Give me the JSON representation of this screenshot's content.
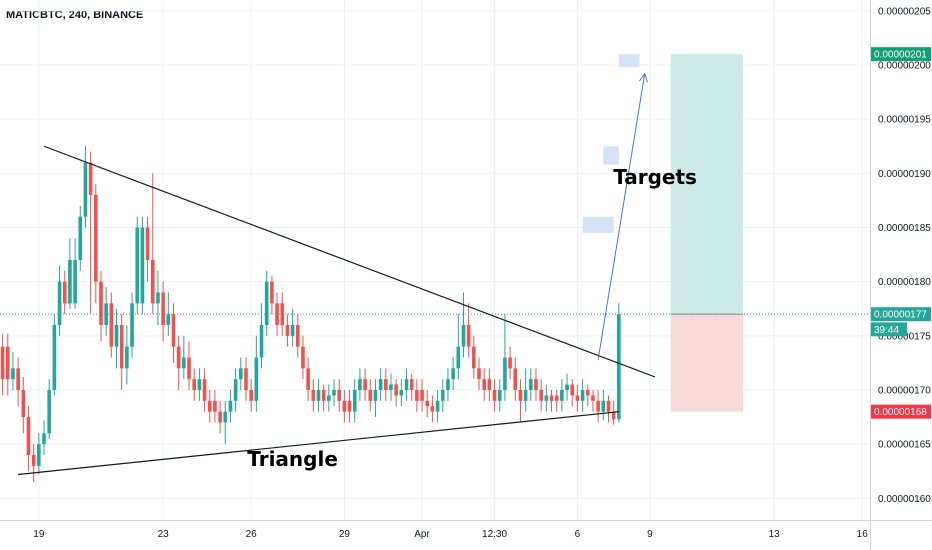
{
  "header": {
    "symbol_title": "MATICBTC, 240, BINANCE"
  },
  "colors": {
    "up": "#26a69a",
    "down": "#ef5350",
    "grid": "#eef0f3",
    "trendline": "#131722",
    "arrow": "#4a77c7",
    "target_zone": "#cdebe6",
    "stop_zone": "#fad9d9",
    "target_boxes": "#d6e3f7",
    "tag_green": "#12a074",
    "tag_red": "#f23645",
    "tag_teal": "#26a69a"
  },
  "chart_data": {
    "type": "candlestick",
    "title": "",
    "y_axis": {
      "position": "right",
      "range": [
        1.58e-06,
        2.06e-06
      ],
      "ticks": [
        "0.00000160",
        "0.00000165",
        "0.00000170",
        "0.00000175",
        "0.00000180",
        "0.00000185",
        "0.00000190",
        "0.00000195",
        "0.00000200",
        "0.00000205"
      ],
      "tick_values": [
        1.6e-06,
        1.65e-06,
        1.7e-06,
        1.75e-06,
        1.8e-06,
        1.85e-06,
        1.9e-06,
        1.95e-06,
        2e-06,
        2.05e-06
      ]
    },
    "x_axis": {
      "ticks": [
        "19",
        "23",
        "26",
        "29",
        "Apr",
        "12:30",
        "6",
        "9",
        "13",
        "16"
      ],
      "tick_bar_index": [
        7,
        31,
        48,
        66,
        81,
        95,
        111,
        125,
        149,
        166
      ]
    },
    "grid": true,
    "bar_count": 168,
    "candle_seed": [
      [
        1.74,
        1.71,
        1.752,
        1.695
      ],
      [
        1.71,
        1.72,
        1.735,
        1.7
      ],
      [
        1.72,
        1.7,
        1.73,
        1.685
      ],
      [
        1.7,
        1.675,
        1.712,
        1.66
      ],
      [
        1.675,
        1.64,
        1.685,
        1.625
      ],
      [
        1.64,
        1.63,
        1.65,
        1.615
      ],
      [
        1.63,
        1.65,
        1.66,
        1.622
      ],
      [
        1.65,
        1.66,
        1.672,
        1.64
      ],
      [
        1.66,
        1.7,
        1.71,
        1.655
      ],
      [
        1.7,
        1.76,
        1.77,
        1.695
      ],
      [
        1.76,
        1.8,
        1.815,
        1.75
      ],
      [
        1.8,
        1.78,
        1.81,
        1.77
      ],
      [
        1.78,
        1.82,
        1.84,
        1.775
      ],
      [
        1.82,
        1.86,
        1.87,
        1.81
      ],
      [
        1.86,
        1.91,
        1.925,
        1.85
      ],
      [
        1.91,
        1.88,
        1.92,
        1.77
      ],
      [
        1.88,
        1.8,
        1.89,
        1.78
      ],
      [
        1.8,
        1.76,
        1.81,
        1.745
      ],
      [
        1.76,
        1.78,
        1.795,
        1.75
      ],
      [
        1.78,
        1.74,
        1.79,
        1.73
      ],
      [
        1.74,
        1.76,
        1.775,
        1.72
      ],
      [
        1.76,
        1.72,
        1.77,
        1.7
      ],
      [
        1.72,
        1.74,
        1.76,
        1.705
      ],
      [
        1.74,
        1.78,
        1.79,
        1.73
      ],
      [
        1.78,
        1.85,
        1.86,
        1.77
      ],
      [
        1.85,
        1.82,
        1.86,
        1.8
      ],
      [
        1.82,
        1.78,
        1.9,
        1.77
      ],
      [
        1.78,
        1.79,
        1.81,
        1.76
      ],
      [
        1.79,
        1.76,
        1.8,
        1.745
      ],
      [
        1.76,
        1.77,
        1.79,
        1.75
      ],
      [
        1.77,
        1.74,
        1.78,
        1.725
      ],
      [
        1.74,
        1.72,
        1.75,
        1.7
      ],
      [
        1.72,
        1.73,
        1.75,
        1.71
      ],
      [
        1.73,
        1.71,
        1.745,
        1.7
      ],
      [
        1.71,
        1.7,
        1.72,
        1.69
      ],
      [
        1.7,
        1.71,
        1.72,
        1.69
      ],
      [
        1.71,
        1.69,
        1.72,
        1.68
      ],
      [
        1.69,
        1.68,
        1.7,
        1.67
      ],
      [
        1.68,
        1.67,
        1.69,
        1.66
      ],
      [
        1.67,
        1.68,
        1.69,
        1.65
      ],
      [
        1.68,
        1.69,
        1.7,
        1.67
      ],
      [
        1.69,
        1.71,
        1.72,
        1.68
      ],
      [
        1.71,
        1.72,
        1.73,
        1.7
      ],
      [
        1.72,
        1.7,
        1.73,
        1.69
      ],
      [
        1.7,
        1.69,
        1.71,
        1.68
      ],
      [
        1.69,
        1.73,
        1.75,
        1.68
      ],
      [
        1.73,
        1.76,
        1.78,
        1.72
      ],
      [
        1.76,
        1.8,
        1.81,
        1.75
      ],
      [
        1.8,
        1.78,
        1.805,
        1.77
      ],
      [
        1.78,
        1.76,
        1.79,
        1.75
      ],
      [
        1.76,
        1.75,
        1.77,
        1.74
      ],
      [
        1.75,
        1.76,
        1.775,
        1.74
      ],
      [
        1.76,
        1.74,
        1.77,
        1.73
      ],
      [
        1.74,
        1.72,
        1.75,
        1.71
      ],
      [
        1.72,
        1.7,
        1.73,
        1.69
      ],
      [
        1.7,
        1.69,
        1.71,
        1.68
      ],
      [
        1.69,
        1.7,
        1.71,
        1.68
      ],
      [
        1.7,
        1.69,
        1.705,
        1.68
      ],
      [
        1.69,
        1.695,
        1.705,
        1.68
      ],
      [
        1.695,
        1.7,
        1.71,
        1.685
      ],
      [
        1.7,
        1.69,
        1.71,
        1.68
      ],
      [
        1.69,
        1.68,
        1.7,
        1.67
      ],
      [
        1.68,
        1.7,
        1.71,
        1.67
      ],
      [
        1.7,
        1.71,
        1.72,
        1.69
      ],
      [
        1.71,
        1.7,
        1.72,
        1.69
      ],
      [
        1.7,
        1.69,
        1.71,
        1.68
      ],
      [
        1.69,
        1.7,
        1.71,
        1.675
      ],
      [
        1.7,
        1.71,
        1.72,
        1.69
      ],
      [
        1.71,
        1.7,
        1.72,
        1.69
      ],
      [
        1.7,
        1.705,
        1.715,
        1.69
      ],
      [
        1.705,
        1.695,
        1.71,
        1.685
      ],
      [
        1.695,
        1.7,
        1.71,
        1.685
      ],
      [
        1.7,
        1.71,
        1.72,
        1.69
      ],
      [
        1.71,
        1.7,
        1.715,
        1.69
      ],
      [
        1.7,
        1.69,
        1.71,
        1.68
      ],
      [
        1.69,
        1.685,
        1.7,
        1.675
      ],
      [
        1.685,
        1.68,
        1.695,
        1.67
      ],
      [
        1.68,
        1.69,
        1.7,
        1.67
      ],
      [
        1.69,
        1.7,
        1.71,
        1.68
      ],
      [
        1.7,
        1.71,
        1.72,
        1.69
      ],
      [
        1.71,
        1.72,
        1.73,
        1.7
      ],
      [
        1.72,
        1.74,
        1.77,
        1.71
      ],
      [
        1.74,
        1.76,
        1.79,
        1.73
      ],
      [
        1.76,
        1.74,
        1.78,
        1.73
      ],
      [
        1.74,
        1.72,
        1.75,
        1.71
      ],
      [
        1.72,
        1.71,
        1.73,
        1.7
      ],
      [
        1.71,
        1.7,
        1.72,
        1.69
      ],
      [
        1.7,
        1.69,
        1.71,
        1.68
      ],
      [
        1.69,
        1.7,
        1.71,
        1.68
      ],
      [
        1.7,
        1.73,
        1.77,
        1.69
      ],
      [
        1.73,
        1.72,
        1.74,
        1.71
      ],
      [
        1.72,
        1.7,
        1.73,
        1.69
      ],
      [
        1.7,
        1.69,
        1.71,
        1.67
      ],
      [
        1.69,
        1.7,
        1.72,
        1.68
      ],
      [
        1.7,
        1.71,
        1.72,
        1.69
      ],
      [
        1.71,
        1.7,
        1.72,
        1.69
      ],
      [
        1.7,
        1.69,
        1.71,
        1.68
      ],
      [
        1.69,
        1.695,
        1.705,
        1.68
      ],
      [
        1.695,
        1.69,
        1.7,
        1.68
      ],
      [
        1.69,
        1.7,
        1.71,
        1.68
      ],
      [
        1.7,
        1.705,
        1.715,
        1.69
      ],
      [
        1.705,
        1.695,
        1.71,
        1.685
      ],
      [
        1.695,
        1.69,
        1.705,
        1.68
      ],
      [
        1.69,
        1.7,
        1.71,
        1.68
      ],
      [
        1.7,
        1.695,
        1.705,
        1.685
      ],
      [
        1.695,
        1.69,
        1.7,
        1.68
      ],
      [
        1.69,
        1.68,
        1.7,
        1.67
      ],
      [
        1.68,
        1.69,
        1.7,
        1.672
      ],
      [
        1.69,
        1.68,
        1.695,
        1.67
      ],
      [
        1.68,
        1.673,
        1.69,
        1.668
      ],
      [
        1.673,
        1.77,
        1.78,
        1.67
      ]
    ],
    "annotations": [
      {
        "type": "text",
        "text": "Targets",
        "at": [
          126,
          1.89e-06
        ]
      },
      {
        "type": "text",
        "text": "Triangle",
        "at": [
          56,
          1.63e-06
        ]
      }
    ],
    "drawings": {
      "triangle_upper": [
        [
          8,
          1.925e-06
        ],
        [
          126,
          1.712e-06
        ]
      ],
      "triangle_lower": [
        [
          3,
          1.622e-06
        ],
        [
          119,
          1.68e-06
        ]
      ],
      "projection_arrow": [
        [
          115,
          1.728e-06
        ],
        [
          124,
          1.992e-06
        ]
      ],
      "target_boxes": [
        {
          "x": [
            119,
            123
          ],
          "y": [
            1.998e-06,
            2.01e-06
          ]
        },
        {
          "x": [
            116,
            119
          ],
          "y": [
            1.908e-06,
            1.925e-06
          ]
        },
        {
          "x": [
            112,
            118
          ],
          "y": [
            1.845e-06,
            1.86e-06
          ]
        }
      ],
      "long_position": {
        "x": [
          129,
          143
        ],
        "entry": 1.77e-06,
        "target": 2.01e-06,
        "stop": 1.68e-06
      }
    },
    "price_tags": [
      {
        "label": "0.00000201",
        "value": 2.01e-06,
        "color": "tag_green"
      },
      {
        "label": "0.00000177",
        "value": 1.77e-06,
        "color": "tag_teal"
      },
      {
        "label": "39:44",
        "value": 1.756e-06,
        "color": "tag_teal"
      },
      {
        "label": "0.00000168",
        "value": 1.68e-06,
        "color": "tag_red"
      }
    ],
    "last_price_line": 1.77e-06
  }
}
